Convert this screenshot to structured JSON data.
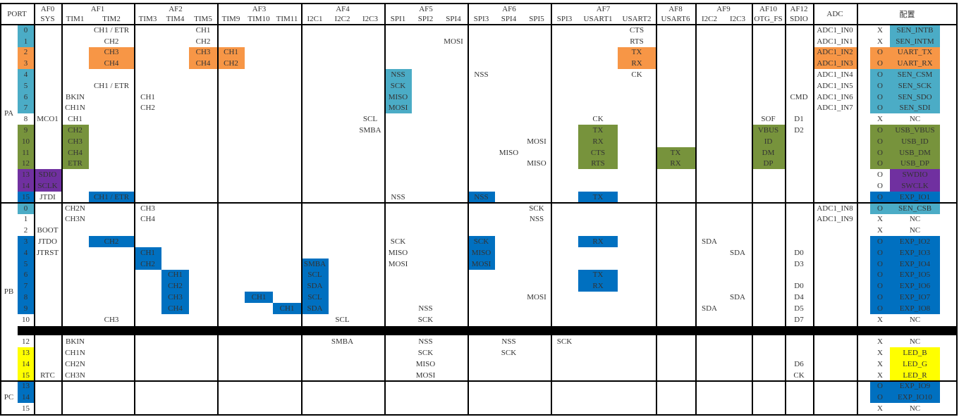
{
  "colors": {
    "cyan": "#4bacc6",
    "orange": "#f79646",
    "green": "#77933c",
    "purple": "#7030a0",
    "blue": "#0070c0",
    "yellow": "#ffff00"
  },
  "header": {
    "port": "PORT",
    "groups": [
      {
        "label": "AF0",
        "cols": [
          "SYS"
        ]
      },
      {
        "label": "AF1",
        "cols": [
          "TIM1",
          "TIM2"
        ]
      },
      {
        "label": "AF2",
        "cols": [
          "TIM3",
          "TIM4",
          "TIM5"
        ]
      },
      {
        "label": "AF3",
        "cols": [
          "TIM9",
          "TIM10",
          "TIM11"
        ]
      },
      {
        "label": "AF4",
        "cols": [
          "I2C1",
          "I2C2",
          "I2C3"
        ]
      },
      {
        "label": "AF5",
        "cols": [
          "SPI1",
          "SPI2",
          "SPI4"
        ]
      },
      {
        "label": "AF6",
        "cols": [
          "SPI3",
          "SPI4",
          "SPI5"
        ]
      },
      {
        "label": "AF7",
        "cols": [
          "SPI3",
          "USART1",
          "USART2"
        ]
      },
      {
        "label": "AF8",
        "cols": [
          "USART6"
        ]
      },
      {
        "label": "AF9",
        "cols": [
          "I2C2",
          "I2C3"
        ]
      },
      {
        "label": "AF10",
        "cols": [
          "OTG_FS"
        ]
      },
      {
        "label": "AF12",
        "cols": [
          "SDIO"
        ]
      }
    ],
    "adc": "ADC",
    "config": "配置"
  },
  "ports": [
    {
      "label": "PA"
    },
    {
      "label": "PB"
    },
    {
      "label": "PC"
    }
  ],
  "rows": [
    {
      "port": "PA",
      "pin": "0",
      "pin_color": "cyan",
      "cells": [
        {
          "col": 2,
          "text": "CH1 / ETR"
        },
        {
          "col": 5,
          "text": "CH1"
        },
        {
          "col": 20,
          "text": "CTS"
        },
        {
          "col": 26,
          "text": "ADC1_IN0"
        }
      ],
      "cfg": {
        "mark": "X",
        "name": "SEN_INTB",
        "name_color": "cyan"
      }
    },
    {
      "port": "PA",
      "pin": "1",
      "pin_color": "cyan",
      "cells": [
        {
          "col": 2,
          "text": "CH2"
        },
        {
          "col": 5,
          "text": "CH2"
        },
        {
          "col": 14,
          "text": "MOSI"
        },
        {
          "col": 20,
          "text": "RTS"
        },
        {
          "col": 26,
          "text": "ADC1_IN1"
        }
      ],
      "cfg": {
        "mark": "X",
        "name": "SEN_INTM",
        "name_color": "cyan"
      }
    },
    {
      "port": "PA",
      "pin": "2",
      "pin_color": "orange",
      "cells": [
        {
          "col": 2,
          "text": "CH3",
          "color": "orange"
        },
        {
          "col": 5,
          "text": "CH3",
          "color": "orange"
        },
        {
          "col": 6,
          "text": "CH1",
          "color": "orange"
        },
        {
          "col": 20,
          "text": "TX",
          "color": "orange"
        },
        {
          "col": 26,
          "text": "ADC1_IN2",
          "color": "orange"
        }
      ],
      "cfg": {
        "mark": "O",
        "mark_color": "orange",
        "name": "UART_TX",
        "name_color": "orange"
      }
    },
    {
      "port": "PA",
      "pin": "3",
      "pin_color": "orange",
      "cells": [
        {
          "col": 2,
          "text": "CH4",
          "color": "orange"
        },
        {
          "col": 5,
          "text": "CH4",
          "color": "orange"
        },
        {
          "col": 6,
          "text": "CH2",
          "color": "orange"
        },
        {
          "col": 20,
          "text": "RX",
          "color": "orange"
        },
        {
          "col": 26,
          "text": "ADC1_IN3",
          "color": "orange"
        }
      ],
      "cfg": {
        "mark": "O",
        "mark_color": "orange",
        "name": "UART_RX",
        "name_color": "orange"
      }
    },
    {
      "port": "PA",
      "pin": "4",
      "pin_color": "cyan",
      "cells": [
        {
          "col": 12,
          "text": "NSS",
          "color": "cyan"
        },
        {
          "col": 15,
          "text": "NSS"
        },
        {
          "col": 20,
          "text": "CK"
        },
        {
          "col": 26,
          "text": "ADC1_IN4"
        }
      ],
      "cfg": {
        "mark": "O",
        "mark_color": "cyan",
        "name": "SEN_CSM",
        "name_color": "cyan"
      }
    },
    {
      "port": "PA",
      "pin": "5",
      "pin_color": "cyan",
      "cells": [
        {
          "col": 2,
          "text": "CH1 / ETR"
        },
        {
          "col": 12,
          "text": "SCK",
          "color": "cyan"
        },
        {
          "col": 26,
          "text": "ADC1_IN5"
        }
      ],
      "cfg": {
        "mark": "O",
        "mark_color": "cyan",
        "name": "SEN_SCK",
        "name_color": "cyan"
      }
    },
    {
      "port": "PA",
      "pin": "6",
      "pin_color": "cyan",
      "cells": [
        {
          "col": 1,
          "text": "BKIN"
        },
        {
          "col": 3,
          "text": "CH1"
        },
        {
          "col": 12,
          "text": "MISO",
          "color": "cyan"
        },
        {
          "col": 25,
          "text": "CMD"
        },
        {
          "col": 26,
          "text": "ADC1_IN6"
        }
      ],
      "cfg": {
        "mark": "O",
        "mark_color": "cyan",
        "name": "SEN_SDO",
        "name_color": "cyan"
      }
    },
    {
      "port": "PA",
      "pin": "7",
      "pin_color": "cyan",
      "cells": [
        {
          "col": 1,
          "text": "CH1N"
        },
        {
          "col": 3,
          "text": "CH2"
        },
        {
          "col": 12,
          "text": "MOSI",
          "color": "cyan"
        },
        {
          "col": 26,
          "text": "ADC1_IN7"
        }
      ],
      "cfg": {
        "mark": "O",
        "mark_color": "cyan",
        "name": "SEN_SDI",
        "name_color": "cyan"
      }
    },
    {
      "port": "PA",
      "pin": "8",
      "cells": [
        {
          "col": 0,
          "text": "MCO1"
        },
        {
          "col": 1,
          "text": "CH1"
        },
        {
          "col": 11,
          "text": "SCL"
        },
        {
          "col": 19,
          "text": "CK"
        },
        {
          "col": 24,
          "text": "SOF"
        },
        {
          "col": 25,
          "text": "D1"
        }
      ],
      "cfg": {
        "mark": "X",
        "name": "NC"
      }
    },
    {
      "port": "PA",
      "pin": "9",
      "pin_color": "green",
      "cells": [
        {
          "col": 1,
          "text": "CH2",
          "color": "green"
        },
        {
          "col": 11,
          "text": "SMBA"
        },
        {
          "col": 19,
          "text": "TX",
          "color": "green"
        },
        {
          "col": 24,
          "text": "VBUS",
          "color": "green"
        },
        {
          "col": 25,
          "text": "D2"
        }
      ],
      "cfg": {
        "mark": "O",
        "mark_color": "green",
        "name": "USB_VBUS",
        "name_color": "green"
      }
    },
    {
      "port": "PA",
      "pin": "10",
      "pin_color": "green",
      "cells": [
        {
          "col": 1,
          "text": "CH3",
          "color": "green"
        },
        {
          "col": 17,
          "text": "MOSI"
        },
        {
          "col": 19,
          "text": "RX",
          "color": "green"
        },
        {
          "col": 24,
          "text": "ID",
          "color": "green"
        }
      ],
      "cfg": {
        "mark": "O",
        "mark_color": "green",
        "name": "USB_ID",
        "name_color": "green"
      }
    },
    {
      "port": "PA",
      "pin": "11",
      "pin_color": "green",
      "cells": [
        {
          "col": 1,
          "text": "CH4",
          "color": "green"
        },
        {
          "col": 16,
          "text": "MISO"
        },
        {
          "col": 19,
          "text": "CTS",
          "color": "green"
        },
        {
          "col": 21,
          "text": "TX",
          "color": "green"
        },
        {
          "col": 24,
          "text": "DM",
          "color": "green"
        }
      ],
      "cfg": {
        "mark": "O",
        "mark_color": "green",
        "name": "USB_DM",
        "name_color": "green"
      }
    },
    {
      "port": "PA",
      "pin": "12",
      "pin_color": "green",
      "cells": [
        {
          "col": 1,
          "text": "ETR",
          "color": "green"
        },
        {
          "col": 17,
          "text": "MISO"
        },
        {
          "col": 19,
          "text": "RTS",
          "color": "green"
        },
        {
          "col": 21,
          "text": "RX",
          "color": "green"
        },
        {
          "col": 24,
          "text": "DP",
          "color": "green"
        }
      ],
      "cfg": {
        "mark": "O",
        "mark_color": "green",
        "name": "USB_DP",
        "name_color": "green"
      }
    },
    {
      "port": "PA",
      "pin": "13",
      "pin_color": "purple",
      "cells": [
        {
          "col": 0,
          "text": "SDIO",
          "color": "purple"
        }
      ],
      "cfg": {
        "mark": "O",
        "name": "SWDIO",
        "name_color": "purple"
      }
    },
    {
      "port": "PA",
      "pin": "14",
      "pin_color": "purple",
      "cells": [
        {
          "col": 0,
          "text": "SCLK",
          "color": "purple"
        }
      ],
      "cfg": {
        "mark": "O",
        "name": "SWCLK",
        "name_color": "purple"
      }
    },
    {
      "port": "PA",
      "pin": "15",
      "pin_color": "blue",
      "cells": [
        {
          "col": 0,
          "text": "JTDI"
        },
        {
          "col": 2,
          "text": "CH1 / ETR",
          "color": "blue"
        },
        {
          "col": 12,
          "text": "NSS"
        },
        {
          "col": 15,
          "text": "NSS",
          "color": "blue"
        },
        {
          "col": 19,
          "text": "TX",
          "color": "blue"
        }
      ],
      "cfg": {
        "mark": "O",
        "mark_color": "blue",
        "name": "EXP_IO1",
        "name_color": "blue"
      }
    },
    {
      "port": "PB",
      "pin": "0",
      "pin_color": "cyan",
      "cells": [
        {
          "col": 1,
          "text": "CH2N"
        },
        {
          "col": 3,
          "text": "CH3"
        },
        {
          "col": 17,
          "text": "SCK"
        },
        {
          "col": 26,
          "text": "ADC1_IN8"
        }
      ],
      "cfg": {
        "mark": "O",
        "mark_color": "cyan",
        "name": "SEN_CSB",
        "name_color": "cyan"
      }
    },
    {
      "port": "PB",
      "pin": "1",
      "cells": [
        {
          "col": 1,
          "text": "CH3N"
        },
        {
          "col": 3,
          "text": "CH4"
        },
        {
          "col": 17,
          "text": "NSS"
        },
        {
          "col": 26,
          "text": "ADC1_IN9"
        }
      ],
      "cfg": {
        "mark": "X",
        "name": "NC"
      }
    },
    {
      "port": "PB",
      "pin": "2",
      "cells": [
        {
          "col": 0,
          "text": "BOOT"
        }
      ],
      "cfg": {
        "mark": "X",
        "name": "NC"
      }
    },
    {
      "port": "PB",
      "pin": "3",
      "pin_color": "blue",
      "cells": [
        {
          "col": 0,
          "text": "JTDO"
        },
        {
          "col": 2,
          "text": "CH2",
          "color": "blue"
        },
        {
          "col": 12,
          "text": "SCK"
        },
        {
          "col": 15,
          "text": "SCK",
          "color": "blue"
        },
        {
          "col": 19,
          "text": "RX",
          "color": "blue"
        },
        {
          "col": 22,
          "text": "SDA"
        }
      ],
      "cfg": {
        "mark": "O",
        "mark_color": "blue",
        "name": "EXP_IO2",
        "name_color": "blue"
      }
    },
    {
      "port": "PB",
      "pin": "4",
      "pin_color": "blue",
      "cells": [
        {
          "col": 0,
          "text": "JTRST"
        },
        {
          "col": 3,
          "text": "CH1",
          "color": "blue"
        },
        {
          "col": 12,
          "text": "MISO"
        },
        {
          "col": 15,
          "text": "MISO",
          "color": "blue"
        },
        {
          "col": 23,
          "text": "SDA"
        },
        {
          "col": 25,
          "text": "D0"
        }
      ],
      "cfg": {
        "mark": "O",
        "mark_color": "blue",
        "name": "EXP_IO3",
        "name_color": "blue"
      }
    },
    {
      "port": "PB",
      "pin": "5",
      "pin_color": "blue",
      "cells": [
        {
          "col": 3,
          "text": "CH2",
          "color": "blue"
        },
        {
          "col": 9,
          "text": "SMBA",
          "color": "blue"
        },
        {
          "col": 12,
          "text": "MOSI"
        },
        {
          "col": 15,
          "text": "MOSI",
          "color": "blue"
        },
        {
          "col": 25,
          "text": "D3"
        }
      ],
      "cfg": {
        "mark": "O",
        "mark_color": "blue",
        "name": "EXP_IO4",
        "name_color": "blue"
      }
    },
    {
      "port": "PB",
      "pin": "6",
      "pin_color": "blue",
      "cells": [
        {
          "col": 4,
          "text": "CH1",
          "color": "blue"
        },
        {
          "col": 9,
          "text": "SCL",
          "color": "blue"
        },
        {
          "col": 19,
          "text": "TX",
          "color": "blue"
        }
      ],
      "cfg": {
        "mark": "O",
        "mark_color": "blue",
        "name": "EXP_IO5",
        "name_color": "blue"
      }
    },
    {
      "port": "PB",
      "pin": "7",
      "pin_color": "blue",
      "cells": [
        {
          "col": 4,
          "text": "CH2",
          "color": "blue"
        },
        {
          "col": 9,
          "text": "SDA",
          "color": "blue"
        },
        {
          "col": 19,
          "text": "RX",
          "color": "blue"
        },
        {
          "col": 25,
          "text": "D0"
        }
      ],
      "cfg": {
        "mark": "O",
        "mark_color": "blue",
        "name": "EXP_IO6",
        "name_color": "blue"
      }
    },
    {
      "port": "PB",
      "pin": "8",
      "pin_color": "blue",
      "cells": [
        {
          "col": 4,
          "text": "CH3",
          "color": "blue"
        },
        {
          "col": 7,
          "text": "CH1",
          "color": "blue"
        },
        {
          "col": 9,
          "text": "SCL",
          "color": "blue"
        },
        {
          "col": 17,
          "text": "MOSI"
        },
        {
          "col": 23,
          "text": "SDA"
        },
        {
          "col": 25,
          "text": "D4"
        }
      ],
      "cfg": {
        "mark": "O",
        "mark_color": "blue",
        "name": "EXP_IO7",
        "name_color": "blue"
      }
    },
    {
      "port": "PB",
      "pin": "9",
      "pin_color": "blue",
      "cells": [
        {
          "col": 4,
          "text": "CH4",
          "color": "blue"
        },
        {
          "col": 8,
          "text": "CH1",
          "color": "blue"
        },
        {
          "col": 9,
          "text": "SDA",
          "color": "blue"
        },
        {
          "col": 13,
          "text": "NSS"
        },
        {
          "col": 22,
          "text": "SDA"
        },
        {
          "col": 25,
          "text": "D5"
        }
      ],
      "cfg": {
        "mark": "O",
        "mark_color": "blue",
        "name": "EXP_IO8",
        "name_color": "blue"
      }
    },
    {
      "port": "PB",
      "pin": "10",
      "cells": [
        {
          "col": 2,
          "text": "CH3"
        },
        {
          "col": 10,
          "text": "SCL"
        },
        {
          "col": 13,
          "text": "SCK"
        },
        {
          "col": 25,
          "text": "D7"
        }
      ],
      "cfg": {
        "mark": "X",
        "name": "NC"
      }
    },
    {
      "port": "PB",
      "pin": "",
      "separator": true,
      "cells": [],
      "cfg": {}
    },
    {
      "port": "PB",
      "pin": "12",
      "cells": [
        {
          "col": 1,
          "text": "BKIN"
        },
        {
          "col": 10,
          "text": "SMBA"
        },
        {
          "col": 13,
          "text": "NSS"
        },
        {
          "col": 16,
          "text": "NSS"
        },
        {
          "col": 18,
          "text": "SCK"
        }
      ],
      "cfg": {
        "mark": "X",
        "name": "NC"
      }
    },
    {
      "port": "PB",
      "pin": "13",
      "pin_color": "yellow",
      "cells": [
        {
          "col": 1,
          "text": "CH1N"
        },
        {
          "col": 13,
          "text": "SCK"
        },
        {
          "col": 16,
          "text": "SCK"
        }
      ],
      "cfg": {
        "mark": "X",
        "name": "LED_B",
        "name_color": "yellow"
      }
    },
    {
      "port": "PB",
      "pin": "14",
      "pin_color": "yellow",
      "cells": [
        {
          "col": 1,
          "text": "CH2N"
        },
        {
          "col": 13,
          "text": "MISO"
        },
        {
          "col": 25,
          "text": "D6"
        }
      ],
      "cfg": {
        "mark": "X",
        "name": "LED_G",
        "name_color": "yellow"
      }
    },
    {
      "port": "PB",
      "pin": "15",
      "pin_color": "yellow",
      "cells": [
        {
          "col": 0,
          "text": "RTC"
        },
        {
          "col": 1,
          "text": "CH3N"
        },
        {
          "col": 13,
          "text": "MOSI"
        },
        {
          "col": 25,
          "text": "CK"
        }
      ],
      "cfg": {
        "mark": "X",
        "name": "LED_R",
        "name_color": "yellow"
      }
    },
    {
      "port": "PC",
      "pin": "13",
      "pin_color": "blue",
      "cells": [],
      "cfg": {
        "mark": "O",
        "mark_color": "blue",
        "name": "EXP_IO9",
        "name_color": "blue"
      }
    },
    {
      "port": "PC",
      "pin": "14",
      "pin_color": "blue",
      "cells": [],
      "cfg": {
        "mark": "O",
        "mark_color": "blue",
        "name": "EXP_IO10",
        "name_color": "blue"
      }
    },
    {
      "port": "PC",
      "pin": "15",
      "cells": [],
      "cfg": {
        "mark": "X",
        "name": "NC"
      }
    }
  ]
}
